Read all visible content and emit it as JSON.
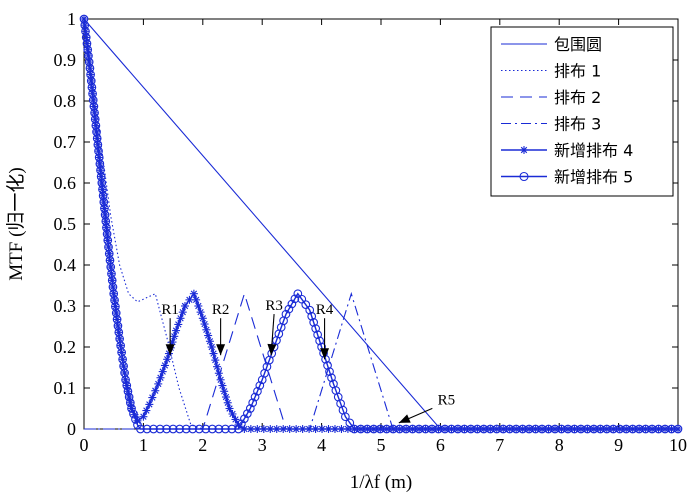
{
  "chart_data": {
    "type": "line",
    "title": "",
    "xlabel": "1/λf (m)",
    "ylabel": "MTF (归一化)",
    "xlim": [
      0,
      10
    ],
    "ylim": [
      0,
      1
    ],
    "xticks": [
      "0",
      "1",
      "2",
      "3",
      "4",
      "5",
      "6",
      "7",
      "8",
      "9",
      "10"
    ],
    "yticks": [
      "0",
      "0.1",
      "0.2",
      "0.3",
      "0.4",
      "0.5",
      "0.6",
      "0.7",
      "0.8",
      "0.9",
      "1"
    ],
    "grid": false,
    "legend_position": "top-right",
    "color": "#1a2bd6",
    "series": [
      {
        "name": "包围圆",
        "style": "solid",
        "marker": "none",
        "x": [
          0,
          6.0,
          10
        ],
        "y": [
          1,
          0,
          0
        ]
      },
      {
        "name": "排布 1",
        "style": "dotted",
        "marker": "none",
        "x": [
          0,
          0.15,
          0.3,
          0.45,
          0.6,
          0.75,
          0.9,
          1.05,
          1.2,
          1.4,
          1.6,
          1.8,
          2.0,
          10
        ],
        "y": [
          1,
          0.84,
          0.68,
          0.52,
          0.4,
          0.33,
          0.31,
          0.32,
          0.33,
          0.22,
          0.1,
          0.01,
          0,
          0
        ]
      },
      {
        "name": "排布 2",
        "style": "dashed",
        "marker": "none",
        "x": [
          0,
          2.0,
          2.7,
          3.4,
          10
        ],
        "y": [
          0,
          0,
          0.33,
          0,
          0
        ]
      },
      {
        "name": "排布 3",
        "style": "dashdot",
        "marker": "none",
        "x": [
          0,
          3.8,
          4.5,
          5.2,
          10
        ],
        "y": [
          0,
          0,
          0.33,
          0,
          0
        ]
      },
      {
        "name": "新增排布 4",
        "style": "solid",
        "marker": "star",
        "x": [
          0,
          0.1,
          0.2,
          0.3,
          0.4,
          0.5,
          0.6,
          0.7,
          0.8,
          0.9,
          1.0,
          1.1,
          1.25,
          1.4,
          1.55,
          1.7,
          1.85,
          2.0,
          2.15,
          2.3,
          2.45,
          2.6,
          2.7,
          10
        ],
        "y": [
          1,
          0.88,
          0.74,
          0.6,
          0.46,
          0.33,
          0.22,
          0.12,
          0.05,
          0.02,
          0.03,
          0.06,
          0.11,
          0.17,
          0.24,
          0.3,
          0.33,
          0.27,
          0.2,
          0.12,
          0.05,
          0.01,
          0,
          0
        ]
      },
      {
        "name": "新增排布 5",
        "style": "solid",
        "marker": "circle",
        "x": [
          0,
          0.1,
          0.2,
          0.3,
          0.4,
          0.5,
          0.6,
          0.7,
          0.8,
          0.9,
          0.95,
          2.6,
          2.8,
          3.0,
          3.2,
          3.4,
          3.6,
          3.8,
          4.0,
          4.2,
          4.4,
          4.55,
          10
        ],
        "y": [
          1,
          0.88,
          0.74,
          0.6,
          0.46,
          0.33,
          0.22,
          0.12,
          0.05,
          0.01,
          0,
          0,
          0.05,
          0.12,
          0.2,
          0.28,
          0.33,
          0.29,
          0.2,
          0.11,
          0.03,
          0,
          0
        ]
      }
    ],
    "annotations": [
      {
        "text": "R1",
        "tx": 1.45,
        "ty": 0.28,
        "ax": 1.45,
        "ay": 0.18
      },
      {
        "text": "R2",
        "tx": 2.3,
        "ty": 0.28,
        "ax": 2.3,
        "ay": 0.18
      },
      {
        "text": "R3",
        "tx": 3.2,
        "ty": 0.29,
        "ax": 3.15,
        "ay": 0.18
      },
      {
        "text": "R4",
        "tx": 4.05,
        "ty": 0.28,
        "ax": 4.05,
        "ay": 0.17
      },
      {
        "text": "R5",
        "tx": 6.1,
        "ty": 0.06,
        "ax": 5.3,
        "ay": 0.015
      }
    ]
  }
}
